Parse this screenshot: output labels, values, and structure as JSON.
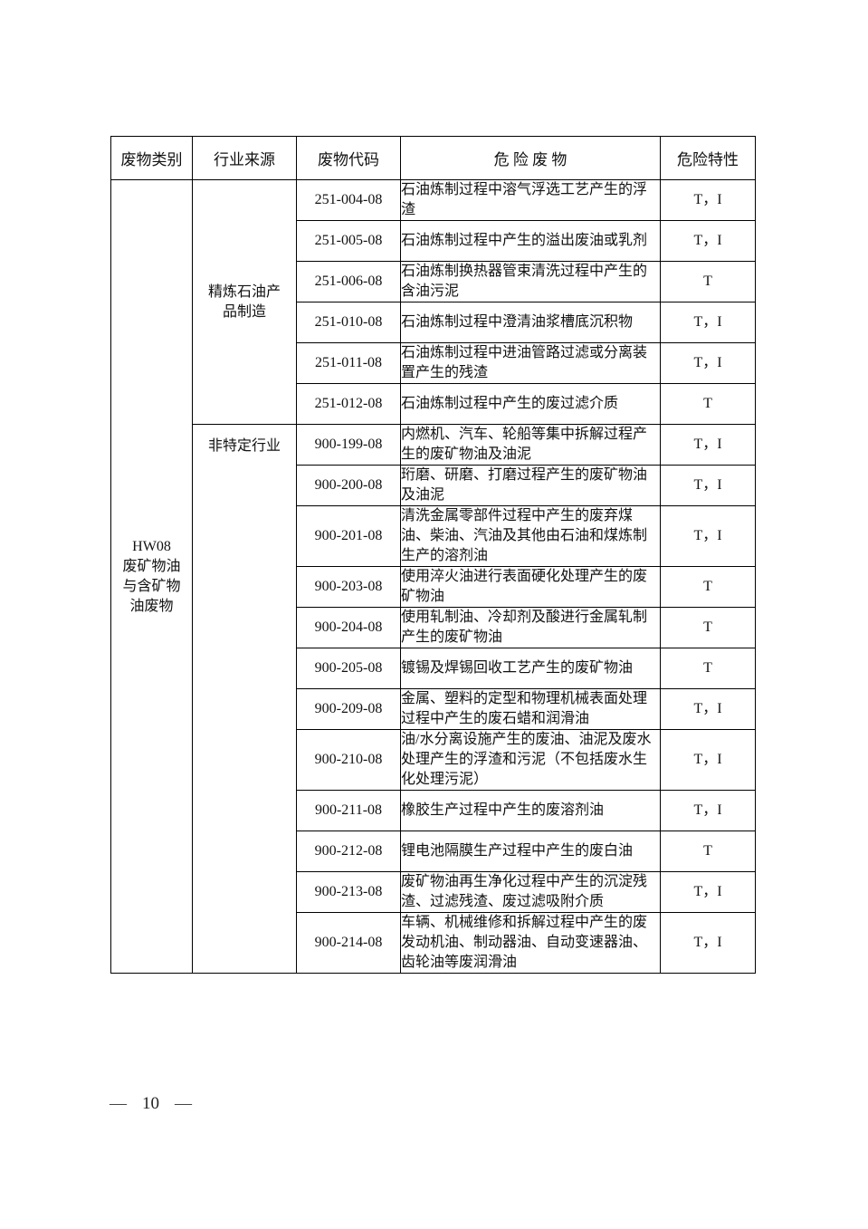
{
  "table": {
    "headers": [
      "废物类别",
      "行业来源",
      "废物代码",
      "危 险 废 物",
      "危险特性"
    ],
    "category": {
      "label": "HW08\n废矿物油\n与含矿物\n油废物"
    },
    "groups": [
      {
        "industry": "精炼石油产\n品制造",
        "rows": [
          {
            "code": "251-004-08",
            "desc": "石油炼制过程中溶气浮选工艺产生的浮渣",
            "hazard": "T，I"
          },
          {
            "code": "251-005-08",
            "desc": "石油炼制过程中产生的溢出废油或乳剂",
            "hazard": "T，I"
          },
          {
            "code": "251-006-08",
            "desc": "石油炼制换热器管束清洗过程中产生的含油污泥",
            "hazard": "T"
          },
          {
            "code": "251-010-08",
            "desc": "石油炼制过程中澄清油浆槽底沉积物",
            "hazard": "T，I"
          },
          {
            "code": "251-011-08",
            "desc": "石油炼制过程中进油管路过滤或分离装置产生的残渣",
            "hazard": "T，I"
          },
          {
            "code": "251-012-08",
            "desc": "石油炼制过程中产生的废过滤介质",
            "hazard": "T"
          }
        ]
      },
      {
        "industry": "非特定行业",
        "rows": [
          {
            "code": "900-199-08",
            "desc": "内燃机、汽车、轮船等集中拆解过程产生的废矿物油及油泥",
            "hazard": "T，I"
          },
          {
            "code": "900-200-08",
            "desc": "珩磨、研磨、打磨过程产生的废矿物油及油泥",
            "hazard": "T，I"
          },
          {
            "code": "900-201-08",
            "desc": "清洗金属零部件过程中产生的废弃煤油、柴油、汽油及其他由石油和煤炼制生产的溶剂油",
            "hazard": "T，I"
          },
          {
            "code": "900-203-08",
            "desc": "使用淬火油进行表面硬化处理产生的废矿物油",
            "hazard": "T"
          },
          {
            "code": "900-204-08",
            "desc": "使用轧制油、冷却剂及酸进行金属轧制产生的废矿物油",
            "hazard": "T"
          },
          {
            "code": "900-205-08",
            "desc": "镀锡及焊锡回收工艺产生的废矿物油",
            "hazard": "T"
          },
          {
            "code": "900-209-08",
            "desc": "金属、塑料的定型和物理机械表面处理过程中产生的废石蜡和润滑油",
            "hazard": "T，I"
          },
          {
            "code": "900-210-08",
            "desc": "油/水分离设施产生的废油、油泥及废水处理产生的浮渣和污泥（不包括废水生化处理污泥）",
            "hazard": "T，I"
          },
          {
            "code": "900-211-08",
            "desc": "橡胶生产过程中产生的废溶剂油",
            "hazard": "T，I"
          },
          {
            "code": "900-212-08",
            "desc": "锂电池隔膜生产过程中产生的废白油",
            "hazard": "T"
          },
          {
            "code": "900-213-08",
            "desc": "废矿物油再生净化过程中产生的沉淀残渣、过滤残渣、废过滤吸附介质",
            "hazard": "T，I"
          },
          {
            "code": "900-214-08",
            "desc": "车辆、机械维修和拆解过程中产生的废发动机油、制动器油、自动变速器油、齿轮油等废润滑油",
            "hazard": "T，I"
          }
        ]
      }
    ]
  },
  "footer": {
    "left_dash": "—",
    "page_number": "10",
    "right_dash": "—"
  }
}
